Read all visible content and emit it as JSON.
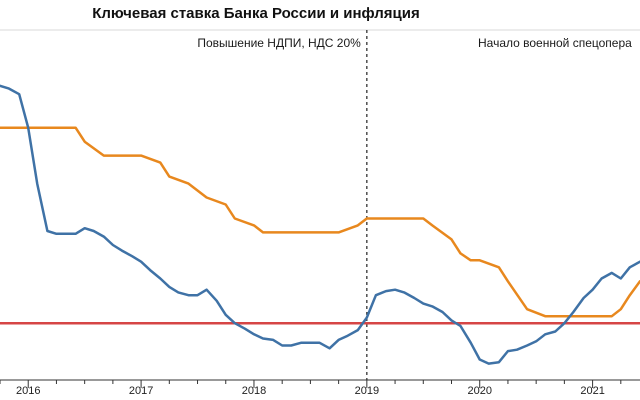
{
  "chart_data": {
    "type": "line",
    "title": "Ключевая ставка Банка России и инфляция",
    "xlabel": "",
    "ylabel": "",
    "grid": false,
    "x_ticks": [
      "2016",
      "2017",
      "2018",
      "2019",
      "2020",
      "2021"
    ],
    "annotations": [
      {
        "x": 2019.0,
        "text": "Повышение НДПИ, НДС 20%"
      },
      {
        "x": 2022.15,
        "text": "Начало военной спецопера"
      }
    ],
    "series": [
      {
        "name": "",
        "color": "#3f72a6",
        "values": [
          [
            2015.75,
            12.5
          ],
          [
            2015.83,
            12.4
          ],
          [
            2015.92,
            12.2
          ],
          [
            2016.0,
            11.0
          ],
          [
            2016.08,
            9.0
          ],
          [
            2016.17,
            7.3
          ],
          [
            2016.25,
            7.2
          ],
          [
            2016.33,
            7.2
          ],
          [
            2016.42,
            7.2
          ],
          [
            2016.5,
            7.4
          ],
          [
            2016.58,
            7.3
          ],
          [
            2016.67,
            7.1
          ],
          [
            2016.75,
            6.8
          ],
          [
            2016.83,
            6.6
          ],
          [
            2016.92,
            6.4
          ],
          [
            2017.0,
            6.2
          ],
          [
            2017.08,
            5.9
          ],
          [
            2017.17,
            5.6
          ],
          [
            2017.25,
            5.3
          ],
          [
            2017.33,
            5.1
          ],
          [
            2017.42,
            5.0
          ],
          [
            2017.5,
            5.0
          ],
          [
            2017.58,
            5.2
          ],
          [
            2017.67,
            4.8
          ],
          [
            2017.75,
            4.3
          ],
          [
            2017.83,
            4.0
          ],
          [
            2017.92,
            3.8
          ],
          [
            2018.0,
            3.6
          ],
          [
            2018.08,
            3.45
          ],
          [
            2018.17,
            3.4
          ],
          [
            2018.25,
            3.2
          ],
          [
            2018.33,
            3.2
          ],
          [
            2018.42,
            3.3
          ],
          [
            2018.5,
            3.3
          ],
          [
            2018.58,
            3.3
          ],
          [
            2018.67,
            3.1
          ],
          [
            2018.75,
            3.4
          ],
          [
            2018.83,
            3.55
          ],
          [
            2018.92,
            3.75
          ],
          [
            2019.0,
            4.2
          ],
          [
            2019.08,
            5.0
          ],
          [
            2019.17,
            5.15
          ],
          [
            2019.25,
            5.2
          ],
          [
            2019.33,
            5.1
          ],
          [
            2019.42,
            4.9
          ],
          [
            2019.5,
            4.7
          ],
          [
            2019.58,
            4.6
          ],
          [
            2019.67,
            4.4
          ],
          [
            2019.75,
            4.1
          ],
          [
            2019.83,
            3.9
          ],
          [
            2019.92,
            3.3
          ],
          [
            2020.0,
            2.7
          ],
          [
            2020.08,
            2.55
          ],
          [
            2020.17,
            2.6
          ],
          [
            2020.25,
            3.0
          ],
          [
            2020.33,
            3.05
          ],
          [
            2020.42,
            3.2
          ],
          [
            2020.5,
            3.35
          ],
          [
            2020.58,
            3.6
          ],
          [
            2020.67,
            3.7
          ],
          [
            2020.75,
            4.0
          ],
          [
            2020.83,
            4.4
          ],
          [
            2020.92,
            4.9
          ],
          [
            2021.0,
            5.2
          ],
          [
            2021.08,
            5.6
          ],
          [
            2021.17,
            5.8
          ],
          [
            2021.25,
            5.6
          ],
          [
            2021.33,
            6.0
          ],
          [
            2021.42,
            6.2
          ]
        ]
      },
      {
        "name": "",
        "color": "#e8881e",
        "values": [
          [
            2015.75,
            11.0
          ],
          [
            2016.0,
            11.0
          ],
          [
            2016.42,
            11.0
          ],
          [
            2016.5,
            10.5
          ],
          [
            2016.67,
            10.0
          ],
          [
            2017.0,
            10.0
          ],
          [
            2017.17,
            9.75
          ],
          [
            2017.25,
            9.25
          ],
          [
            2017.42,
            9.0
          ],
          [
            2017.58,
            8.5
          ],
          [
            2017.75,
            8.25
          ],
          [
            2017.83,
            7.75
          ],
          [
            2018.0,
            7.5
          ],
          [
            2018.08,
            7.25
          ],
          [
            2018.25,
            7.25
          ],
          [
            2018.75,
            7.25
          ],
          [
            2018.92,
            7.5
          ],
          [
            2019.0,
            7.75
          ],
          [
            2019.5,
            7.75
          ],
          [
            2019.58,
            7.5
          ],
          [
            2019.75,
            7.0
          ],
          [
            2019.83,
            6.5
          ],
          [
            2019.92,
            6.25
          ],
          [
            2020.0,
            6.25
          ],
          [
            2020.17,
            6.0
          ],
          [
            2020.25,
            5.5
          ],
          [
            2020.42,
            4.5
          ],
          [
            2020.58,
            4.25
          ],
          [
            2020.75,
            4.25
          ],
          [
            2021.0,
            4.25
          ],
          [
            2021.17,
            4.25
          ],
          [
            2021.25,
            4.5
          ],
          [
            2021.33,
            5.0
          ],
          [
            2021.42,
            5.5
          ]
        ]
      },
      {
        "name": "",
        "color": "#d64545",
        "values": [
          [
            2015.75,
            4.0
          ],
          [
            2016.0,
            4.0
          ],
          [
            2016.08,
            4.0
          ],
          [
            2016.17,
            4.0
          ],
          [
            2021.42,
            4.0
          ]
        ]
      }
    ]
  }
}
